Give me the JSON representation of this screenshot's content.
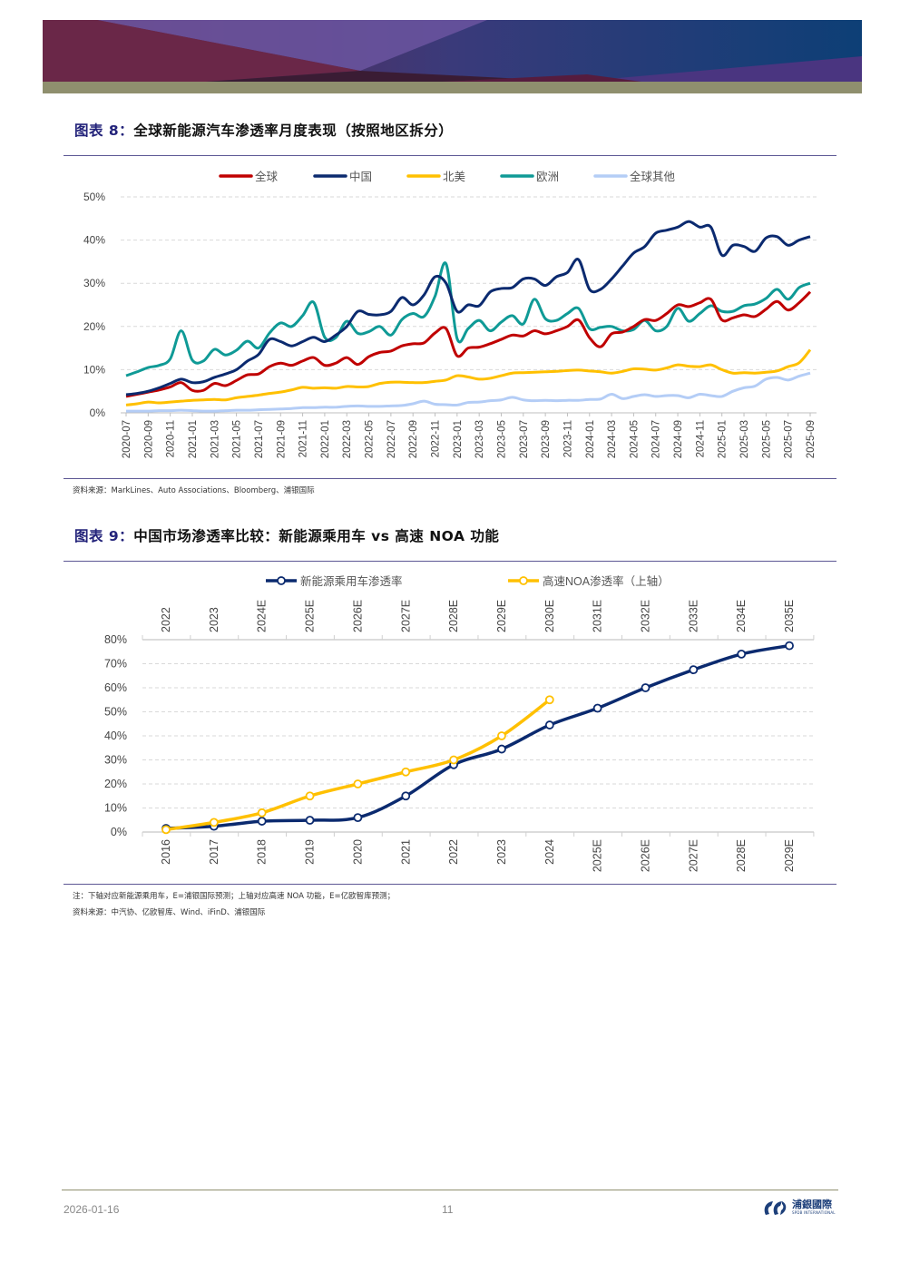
{
  "colors": {
    "global": "#c00000",
    "china": "#0b2a6f",
    "north_america": "#ffc000",
    "europe": "#0f9a96",
    "rest_of_world": "#b4cdf6",
    "nev": "#0b2a6f",
    "noa": "#ffc000",
    "rule": "#5d5794"
  },
  "figure8": {
    "title_num": "图表 8：",
    "title_text": "全球新能源汽车渗透率月度表现（按照地区拆分）",
    "source": "资料来源：MarkLines、Auto Associations、Bloomberg、浦银国际"
  },
  "figure9": {
    "title_num": "图表 9：",
    "title_text": "中国市场渗透率比较：新能源乘用车 vs 高速 NOA 功能",
    "note": "注：下轴对应新能源乘用车，E=浦银国际预测；上轴对应高速 NOA 功能，E=亿欧智库预测；",
    "source": "资料来源：中汽协、亿欧智库、Wind、iFinD、浦银国际"
  },
  "footer": {
    "date": "2026-01-16",
    "page": "11",
    "logo_text": "浦銀國際",
    "logo_sub": "SPDB INTERNATIONAL"
  },
  "chart_data": [
    {
      "type": "line",
      "title": "全球新能源汽车渗透率月度表现（按照地区拆分）",
      "ylim": [
        0,
        50
      ],
      "yticks": [
        "0%",
        "10%",
        "20%",
        "30%",
        "40%",
        "50%"
      ],
      "grid": true,
      "legend_position": "top-center",
      "categories": [
        "2020-07",
        "2020-08",
        "2020-09",
        "2020-10",
        "2020-11",
        "2020-12",
        "2021-01",
        "2021-02",
        "2021-03",
        "2021-04",
        "2021-05",
        "2021-06",
        "2021-07",
        "2021-08",
        "2021-09",
        "2021-10",
        "2021-11",
        "2021-12",
        "2022-01",
        "2022-02",
        "2022-03",
        "2022-04",
        "2022-05",
        "2022-06",
        "2022-07",
        "2022-08",
        "2022-09",
        "2022-10",
        "2022-11",
        "2022-12",
        "2023-01",
        "2023-02",
        "2023-03",
        "2023-04",
        "2023-05",
        "2023-06",
        "2023-07",
        "2023-08",
        "2023-09",
        "2023-10",
        "2023-11",
        "2023-12",
        "2024-01",
        "2024-02",
        "2024-03",
        "2024-04",
        "2024-05",
        "2024-06",
        "2024-07",
        "2024-08",
        "2024-09",
        "2024-10",
        "2024-11",
        "2024-12",
        "2025-01",
        "2025-02",
        "2025-03",
        "2025-04",
        "2025-05",
        "2025-06",
        "2025-07",
        "2025-08",
        "2025-09"
      ],
      "series": [
        {
          "name": "全球",
          "key": "global",
          "values": [
            3.8,
            4.3,
            4.8,
            5.3,
            6,
            7,
            5.2,
            5.2,
            6.8,
            6.3,
            7.5,
            8.8,
            9,
            10.7,
            11.5,
            11,
            12,
            12.8,
            11,
            11.5,
            12.8,
            11.2,
            13,
            14,
            14.3,
            15.5,
            16,
            16.2,
            18.5,
            19.5,
            13.2,
            15,
            15.2,
            16,
            17,
            18,
            17.8,
            19,
            18.3,
            19,
            20,
            21.5,
            17.4,
            15.3,
            18.3,
            18.7,
            20,
            21.6,
            21.4,
            23,
            25,
            24.6,
            25.5,
            26.3,
            21.5,
            22,
            22.7,
            22.3,
            24,
            25.8,
            23.8,
            25.5,
            28
          ]
        },
        {
          "name": "中国",
          "key": "china",
          "values": [
            4.2,
            4.5,
            5,
            5.8,
            6.8,
            7.8,
            7,
            7.2,
            8.2,
            9,
            10,
            12,
            13.5,
            17,
            16.5,
            15.5,
            16.5,
            17.5,
            16.5,
            18,
            20,
            23.5,
            22.8,
            22.7,
            23.5,
            26.7,
            25,
            27.3,
            31.5,
            30,
            23.5,
            25,
            24.8,
            28,
            28.8,
            29,
            31,
            31,
            29.5,
            31.5,
            32.5,
            35.5,
            28.6,
            28.6,
            31,
            34,
            37,
            38.5,
            41.6,
            42.3,
            43,
            44.3,
            43,
            43,
            36.5,
            38.8,
            38.5,
            37.4,
            40.5,
            40.8,
            38.8,
            40,
            40.8
          ]
        },
        {
          "name": "北美",
          "key": "north_america",
          "values": [
            1.8,
            2.1,
            2.5,
            2.3,
            2.5,
            2.7,
            2.9,
            3,
            3.1,
            3,
            3.5,
            3.8,
            4.1,
            4.5,
            4.8,
            5.3,
            5.9,
            5.7,
            5.8,
            5.7,
            6.1,
            6,
            6.1,
            6.8,
            7.1,
            7.1,
            7,
            7,
            7.3,
            7.6,
            8.6,
            8.3,
            7.8,
            8,
            8.6,
            9.2,
            9.3,
            9.4,
            9.5,
            9.6,
            9.8,
            9.9,
            9.7,
            9.5,
            9.2,
            9.6,
            10.2,
            10.1,
            9.9,
            10.4,
            11.1,
            10.8,
            10.7,
            11.1,
            10,
            9.2,
            9.3,
            9.2,
            9.4,
            9.7,
            10.7,
            11.6,
            14.6
          ]
        },
        {
          "name": "欧洲",
          "key": "europe",
          "values": [
            8.6,
            9.5,
            10.5,
            11,
            12.5,
            19,
            12.2,
            12,
            14.7,
            13.4,
            14.5,
            16.6,
            15,
            18.5,
            20.8,
            20,
            22.5,
            25.6,
            17.5,
            17.4,
            21.2,
            18.4,
            18.8,
            20,
            18,
            21.6,
            23,
            22.3,
            27,
            34.5,
            17.2,
            19.5,
            21.4,
            19,
            21,
            22.5,
            20.6,
            26.3,
            21.8,
            21.4,
            23,
            24.2,
            19.5,
            19.8,
            20,
            19,
            19.3,
            21.4,
            19,
            20,
            24.2,
            21.2,
            23,
            24.8,
            23.5,
            23.5,
            24.8,
            25.2,
            26.5,
            28.6,
            26.3,
            29,
            30
          ]
        },
        {
          "name": "全球其他",
          "key": "rest_of_world",
          "values": [
            0.4,
            0.4,
            0.4,
            0.5,
            0.5,
            0.6,
            0.5,
            0.4,
            0.4,
            0.5,
            0.6,
            0.6,
            0.7,
            0.8,
            0.9,
            1,
            1.2,
            1.2,
            1.3,
            1.3,
            1.5,
            1.6,
            1.5,
            1.5,
            1.6,
            1.7,
            2.1,
            2.7,
            2,
            1.9,
            1.8,
            2.4,
            2.5,
            2.8,
            3,
            3.6,
            3,
            2.8,
            2.9,
            2.8,
            2.9,
            2.9,
            3.1,
            3.2,
            4.3,
            3.3,
            3.8,
            4.2,
            3.8,
            4,
            4,
            3.5,
            4.3,
            4,
            3.8,
            5,
            5.8,
            6.2,
            7.8,
            8.2,
            7.6,
            8.5,
            9.2
          ]
        }
      ]
    },
    {
      "type": "line",
      "title": "中国市场渗透率比较：新能源乘用车 vs 高速 NOA 功能",
      "ylim": [
        0,
        80
      ],
      "yticks": [
        "0%",
        "10%",
        "20%",
        "30%",
        "40%",
        "50%",
        "60%",
        "70%",
        "80%"
      ],
      "grid": true,
      "legend_position": "top-center",
      "categories_bottom": [
        "2016",
        "2017",
        "2018",
        "2019",
        "2020",
        "2021",
        "2022",
        "2023",
        "2024",
        "2025E",
        "2026E",
        "2027E",
        "2028E",
        "2029E"
      ],
      "categories_top": [
        "2022",
        "2023",
        "2024E",
        "2025E",
        "2026E",
        "2027E",
        "2028E",
        "2029E",
        "2030E",
        "2031E",
        "2032E",
        "2033E",
        "2034E",
        "2035E"
      ],
      "series": [
        {
          "name": "新能源乘用车渗透率",
          "key": "nev",
          "axis": "bottom",
          "values": [
            1.5,
            2.4,
            4.5,
            4.9,
            6,
            15,
            28,
            34.5,
            44.5,
            51.5,
            60,
            67.5,
            74,
            77.5
          ]
        },
        {
          "name": "高速NOA渗透率（上轴）",
          "key": "noa",
          "axis": "top",
          "values": [
            1,
            4,
            8,
            15,
            20,
            25,
            30,
            40,
            55
          ]
        }
      ]
    }
  ]
}
